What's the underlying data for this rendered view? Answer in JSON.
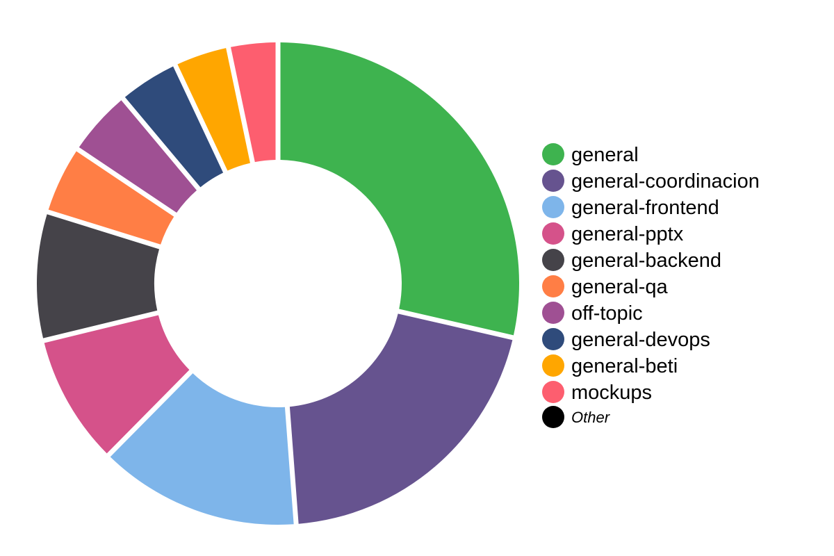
{
  "chart_data": {
    "type": "pie",
    "variant": "donut",
    "title": "",
    "slices": [
      {
        "label": "general",
        "value": 28.6,
        "color": "#3eb34f"
      },
      {
        "label": "general-coordinacion",
        "value": 20.2,
        "color": "#66538f"
      },
      {
        "label": "general-frontend",
        "value": 13.6,
        "color": "#7eb5ea"
      },
      {
        "label": "general-pptx",
        "value": 8.8,
        "color": "#d5528a"
      },
      {
        "label": "general-backend",
        "value": 8.6,
        "color": "#454349"
      },
      {
        "label": "general-qa",
        "value": 4.6,
        "color": "#ff7e45"
      },
      {
        "label": "off-topic",
        "value": 4.5,
        "color": "#9f5093"
      },
      {
        "label": "general-devops",
        "value": 4.1,
        "color": "#2f4b7b"
      },
      {
        "label": "general-beti",
        "value": 3.7,
        "color": "#ffa600"
      },
      {
        "label": "mockups",
        "value": 3.3,
        "color": "#fd5e6f"
      }
    ],
    "other": {
      "label": "Other",
      "value": 0,
      "color": "#000000"
    },
    "legend_position": "right"
  }
}
